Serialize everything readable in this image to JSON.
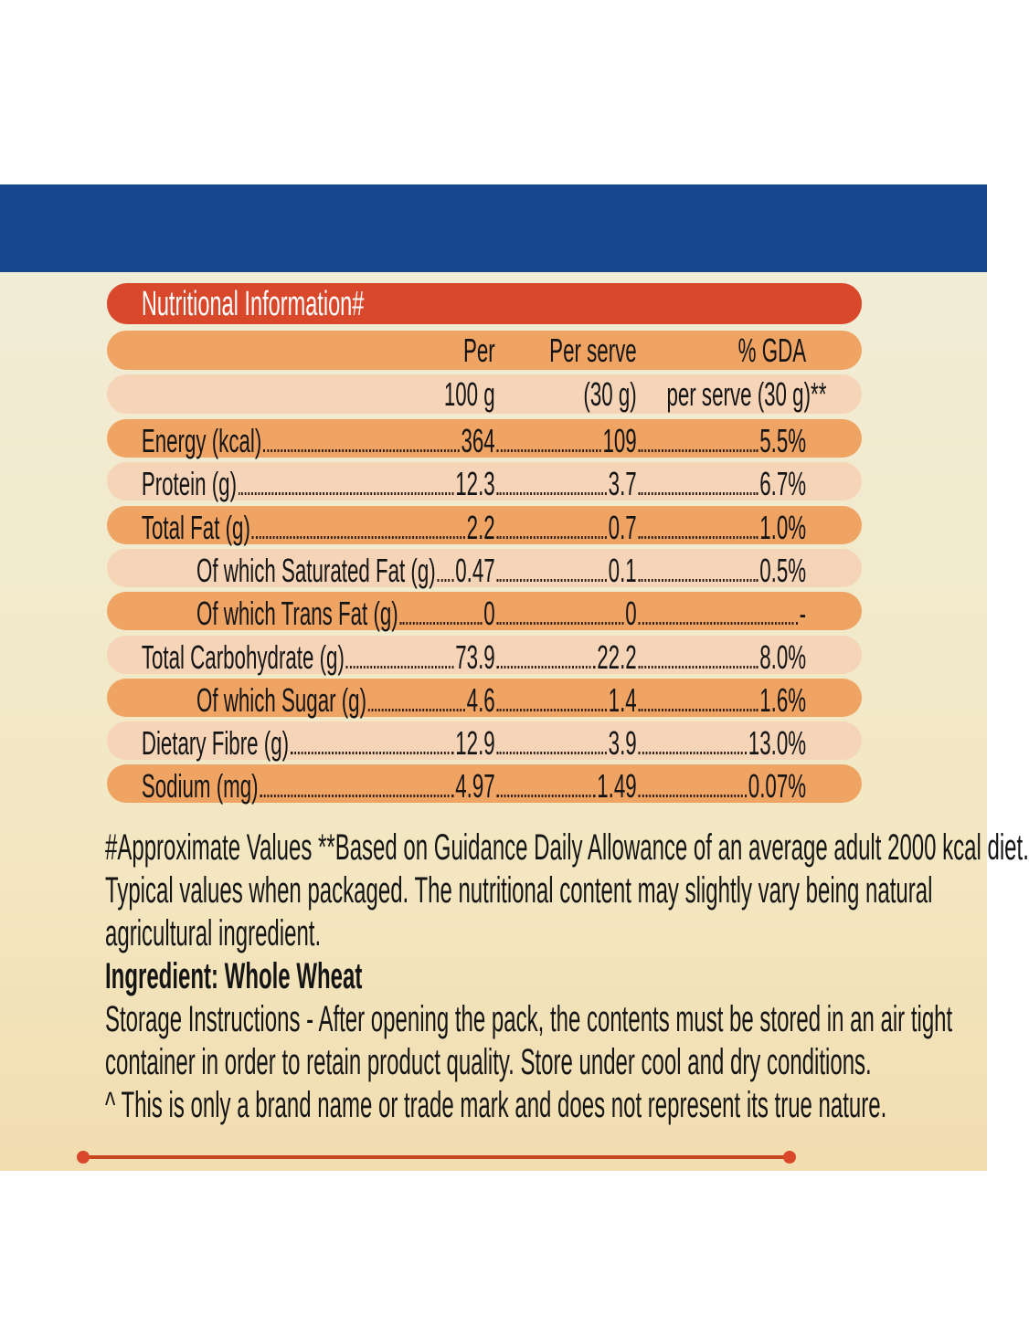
{
  "title": "Nutritional Information#",
  "header": {
    "col1_line1": "Per",
    "col1_line2": "100 g",
    "col2_line1": "Per serve",
    "col2_line2": "(30 g)",
    "col3_line1": "% GDA",
    "col3_line2": "per serve (30 g)**"
  },
  "rows": [
    {
      "label": "Energy (kcal)",
      "per100": "364",
      "serve": "109",
      "gda": "5.5%",
      "indent": false
    },
    {
      "label": "Protein (g)",
      "per100": "12.3",
      "serve": "3.7",
      "gda": "6.7%",
      "indent": false
    },
    {
      "label": "Total Fat (g)",
      "per100": "2.2",
      "serve": "0.7",
      "gda": "1.0%",
      "indent": false
    },
    {
      "label": "Of which Saturated Fat (g)",
      "per100": "0.47",
      "serve": "0.1",
      "gda": "0.5%",
      "indent": true
    },
    {
      "label": "Of which Trans Fat (g)",
      "per100": "0",
      "serve": "0",
      "gda": "-",
      "indent": true
    },
    {
      "label": "Total Carbohydrate (g)",
      "per100": "73.9",
      "serve": "22.2",
      "gda": "8.0%",
      "indent": false
    },
    {
      "label": "Of which Sugar (g)",
      "per100": "4.6",
      "serve": "1.4",
      "gda": "1.6%",
      "indent": true
    },
    {
      "label": "Dietary Fibre (g)",
      "per100": "12.9",
      "serve": "3.9",
      "gda": "13.0%",
      "indent": false
    },
    {
      "label": "Sodium (mg)",
      "per100": "4.97",
      "serve": "1.49",
      "gda": "0.07%",
      "indent": false
    }
  ],
  "footer": {
    "line1": "#Approximate Values  **Based on Guidance Daily Allowance of an average adult 2000 kcal diet.",
    "line2": "Typical values when packaged. The nutritional content may slightly vary being natural",
    "line3": "agricultural ingredient.",
    "ingredient": "Ingredient: Whole Wheat",
    "storage1": "Storage Instructions - After opening the pack, the contents must be stored in an air tight",
    "storage2": "container in order to retain product quality. Store under cool and dry conditions.",
    "disclaimer": "^ This is only a brand name or trade mark and does not represent its true nature."
  },
  "colors": {
    "band": "#17478f",
    "title_bar": "#d9482a",
    "row_dark": "#efa464",
    "row_light": "#f6d4b8"
  }
}
